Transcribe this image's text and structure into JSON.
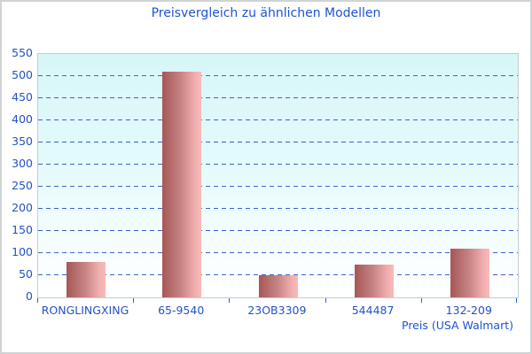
{
  "title": "Preisvergleich zu ähnlichen Modellen",
  "chart_data": {
    "type": "bar",
    "title": "Preisvergleich zu ähnlichen Modellen",
    "categories": [
      "RONGLINGXING",
      "65-9540",
      "23OB3309",
      "544487",
      "132-209"
    ],
    "values": [
      80,
      510,
      50,
      75,
      110
    ],
    "xlabel": "Preis (USA Walmart)",
    "ylabel": "",
    "ylim": [
      0,
      550
    ],
    "yticks": [
      0,
      50,
      100,
      150,
      200,
      250,
      300,
      350,
      400,
      450,
      500,
      550
    ],
    "grid": "horizontal-dashed",
    "legend_position": "none",
    "colors": {
      "text": "#1d53d2",
      "axis_text": "#2152c4",
      "gridline": "#3c64c8",
      "tick": "#2f5fd0",
      "bar_gradient_left": "#a75757",
      "bar_gradient_right": "#f7baba",
      "plot_bg_top": "#d7f6f8",
      "plot_bg_bottom": "#ffffff",
      "plot_border": "#c2cdd1",
      "outer_border": "#d0d3d4"
    }
  }
}
